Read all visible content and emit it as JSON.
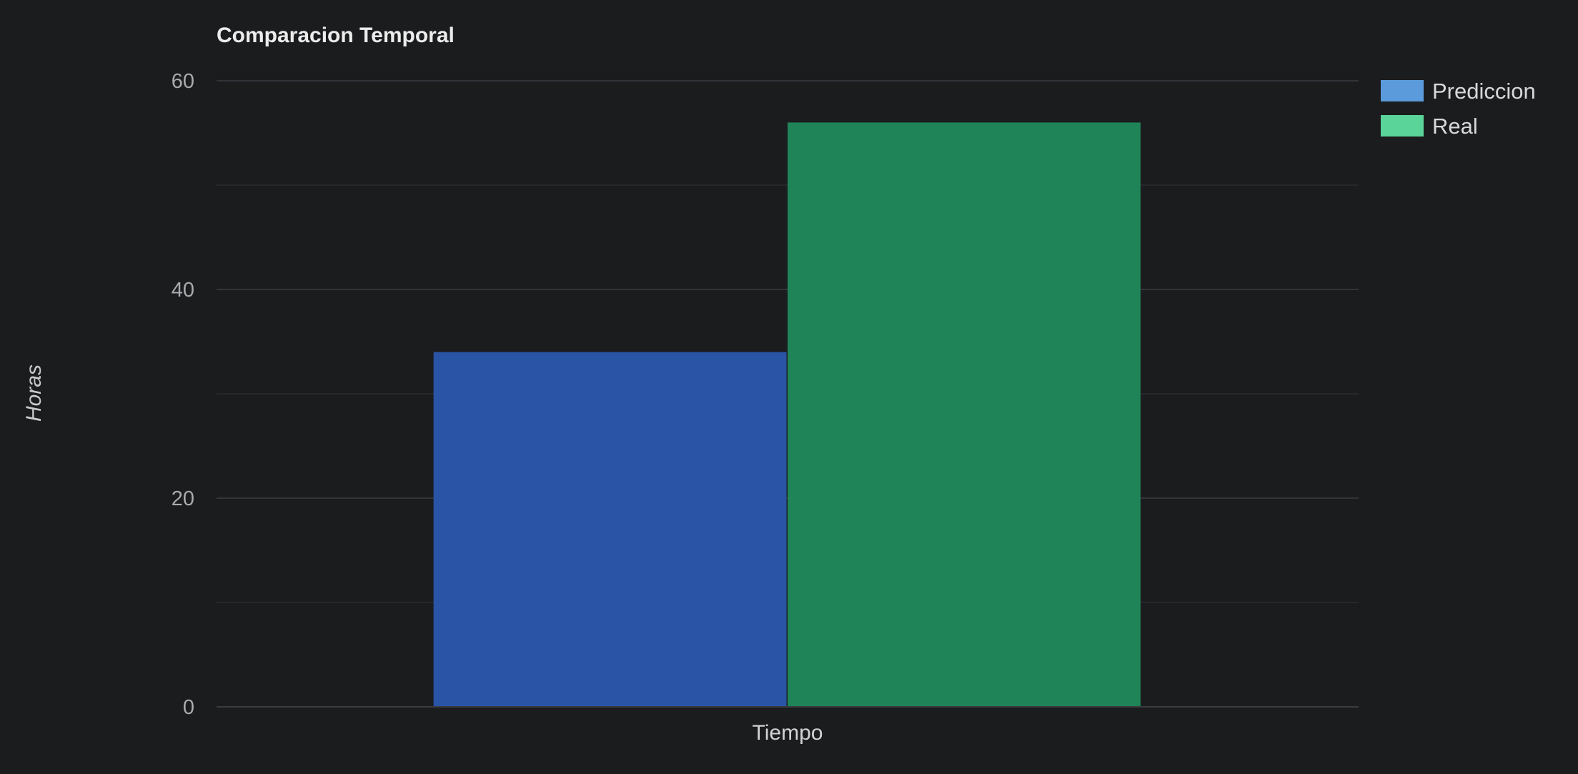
{
  "chart_data": {
    "type": "bar",
    "title": "Comparacion Temporal",
    "xlabel": "",
    "ylabel": "Horas",
    "categories": [
      "Tiempo"
    ],
    "series": [
      {
        "name": "Prediccion",
        "values": [
          34
        ],
        "color": "#2a54a6",
        "legend_color": "#5b9bdc"
      },
      {
        "name": "Real",
        "values": [
          56
        ],
        "color": "#1f8457",
        "legend_color": "#5bd49a"
      }
    ],
    "ylim": [
      0,
      60
    ],
    "y_ticks": [
      0,
      20,
      40,
      60
    ],
    "y_minor_ticks": [
      10,
      30,
      50
    ],
    "grid": true,
    "legend_position": "top-right",
    "background": "#1b1c1e"
  }
}
